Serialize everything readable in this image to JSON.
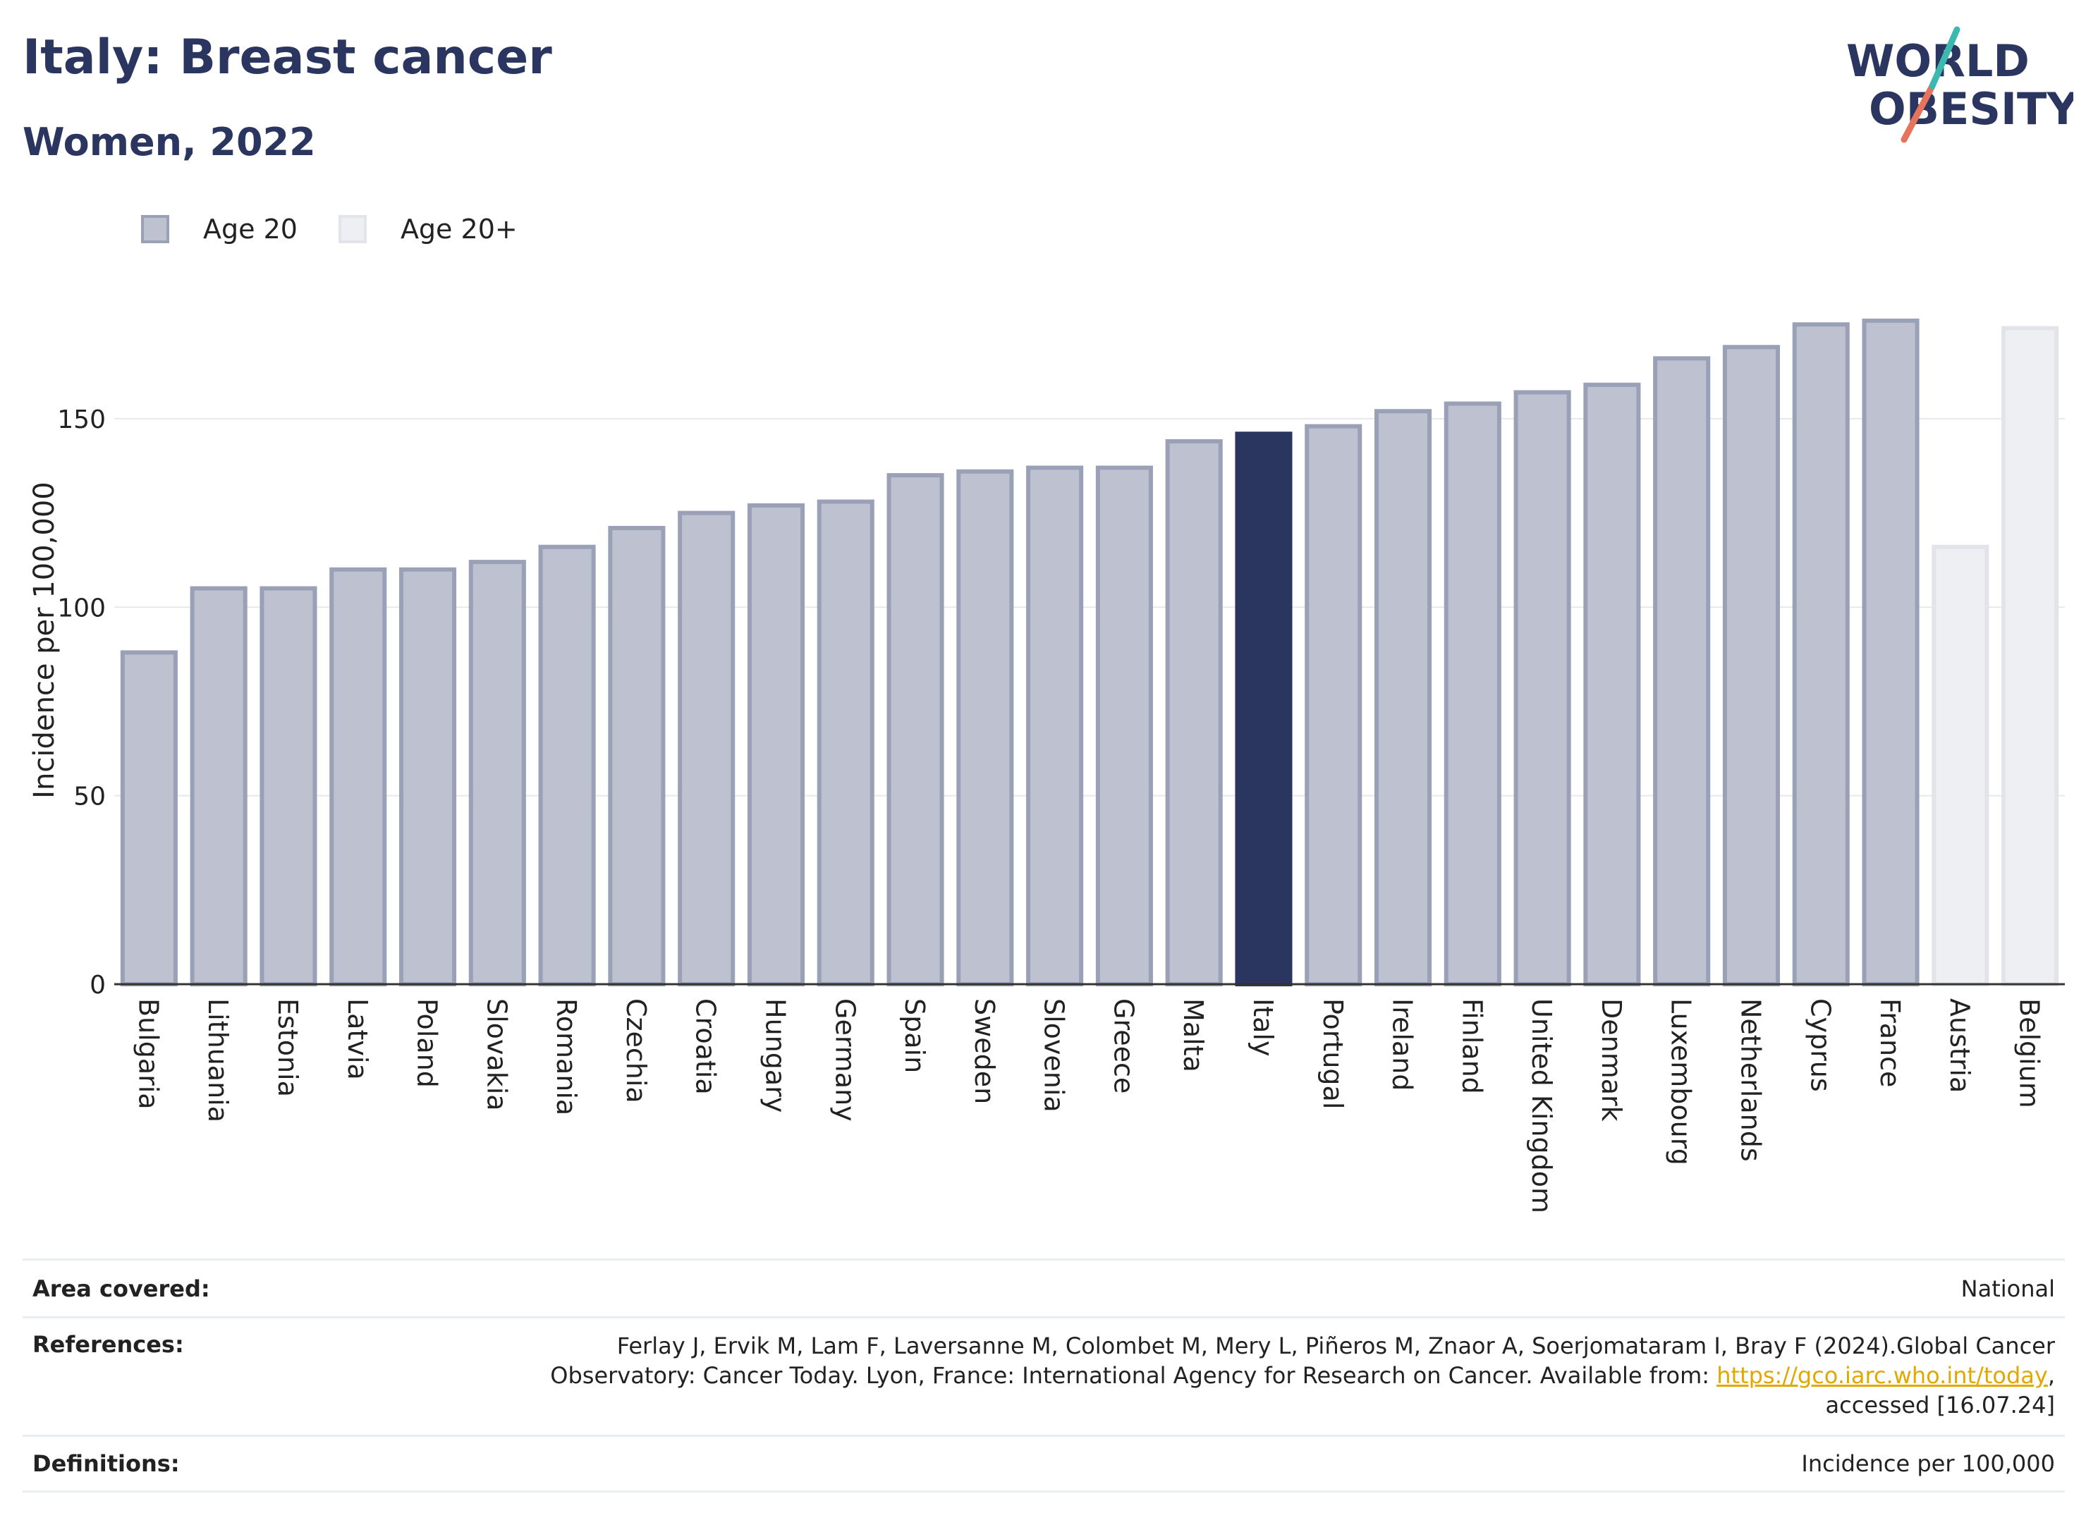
{
  "header": {
    "title": "Italy: Breast cancer",
    "subtitle": "Women, 2022",
    "logo_line1": "WORLD",
    "logo_line2": "OBESITY"
  },
  "legend": [
    {
      "label": "Age 20",
      "color": "#bec1cf",
      "border": "#9aa0b6"
    },
    {
      "label": "Age 20+",
      "color": "#eeeff3",
      "border": "#e2e4ea"
    }
  ],
  "chart_data": {
    "type": "bar",
    "ylabel": "Incidence per 100,000",
    "ylim": [
      0,
      190
    ],
    "yticks": [
      0,
      50,
      100,
      150
    ],
    "grid": true,
    "legend_position": "top-left",
    "highlight": "Italy",
    "highlight_color": "#2a3560",
    "categories": [
      "Bulgaria",
      "Lithuania",
      "Estonia",
      "Latvia",
      "Poland",
      "Slovakia",
      "Romania",
      "Czechia",
      "Croatia",
      "Hungary",
      "Germany",
      "Spain",
      "Sweden",
      "Slovenia",
      "Greece",
      "Malta",
      "Italy",
      "Portugal",
      "Ireland",
      "Finland",
      "United Kingdom",
      "Denmark",
      "Luxembourg",
      "Netherlands",
      "Cyprus",
      "France",
      "Austria",
      "Belgium"
    ],
    "values": [
      88,
      105,
      105,
      110,
      110,
      112,
      116,
      121,
      125,
      127,
      128,
      135,
      136,
      137,
      137,
      144,
      146,
      148,
      152,
      154,
      157,
      159,
      166,
      169,
      175,
      176,
      116,
      174
    ],
    "series_index": [
      0,
      0,
      0,
      0,
      0,
      0,
      0,
      0,
      0,
      0,
      0,
      0,
      0,
      0,
      0,
      0,
      0,
      0,
      0,
      0,
      0,
      0,
      0,
      0,
      0,
      0,
      1,
      1
    ]
  },
  "info": {
    "area_key": "Area covered:",
    "area_val": "National",
    "ref_key": "References:",
    "ref_val_1": "Ferlay J, Ervik M, Lam F, Laversanne M, Colombet M, Mery L, Piñeros M, Znaor A, Soerjomataram I, Bray F (2024).Global Cancer",
    "ref_val_2": "Observatory: Cancer Today. Lyon, France: International Agency for Research on Cancer. Available from: ",
    "ref_link": "https://gco.iarc.who.int/today",
    "ref_val_3": ",",
    "ref_val_4": "accessed [16.07.24]",
    "def_key": "Definitions:",
    "def_val": "Incidence per 100,000"
  }
}
